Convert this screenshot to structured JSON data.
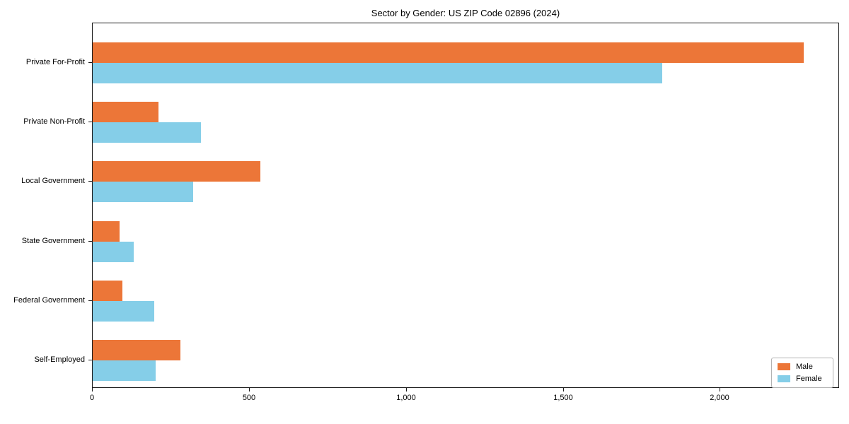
{
  "chart_data": {
    "type": "bar",
    "orientation": "horizontal",
    "title": "Sector by Gender: US ZIP Code 02896 (2024)",
    "categories": [
      "Private For-Profit",
      "Private Non-Profit",
      "Local Government",
      "State Government",
      "Federal Government",
      "Self-Employed"
    ],
    "series": [
      {
        "name": "Male",
        "color": "#EC7638",
        "values": [
          2265,
          210,
          535,
          85,
          95,
          280
        ]
      },
      {
        "name": "Female",
        "color": "#85CEE8",
        "values": [
          1815,
          345,
          320,
          130,
          195,
          200
        ]
      }
    ],
    "xlim": [
      0,
      2380
    ],
    "xticks": [
      0,
      500,
      1000,
      1500,
      2000
    ],
    "xtick_labels": [
      "0",
      "500",
      "1,000",
      "1,500",
      "2,000"
    ],
    "ylabel": "",
    "xlabel": "",
    "grid": false,
    "legend_position": "lower right"
  }
}
